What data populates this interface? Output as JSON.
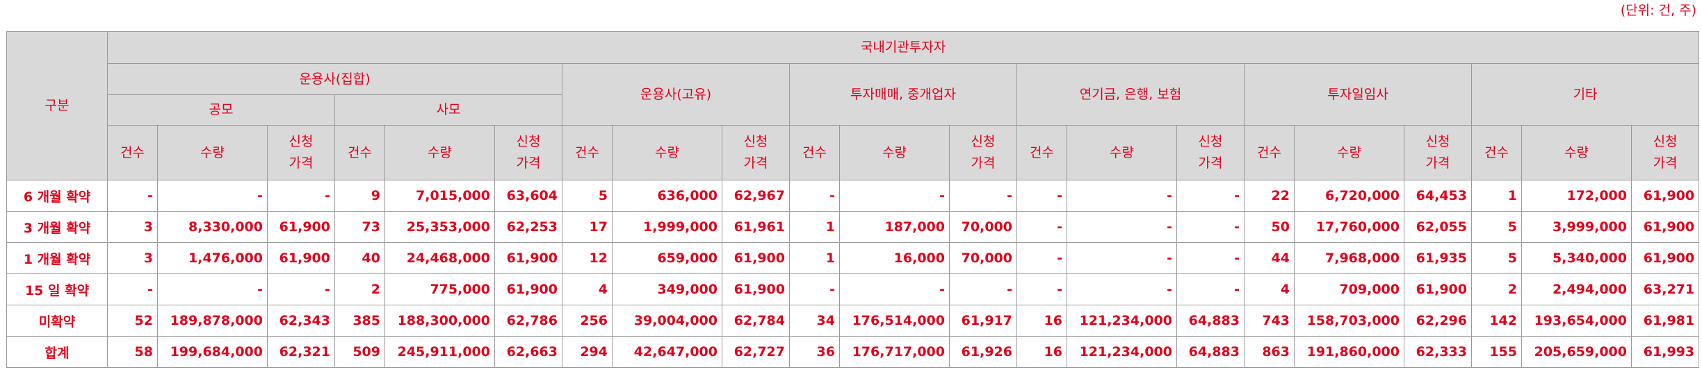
{
  "unit_label": "(단위: 건, 주)",
  "header": {
    "category": "구분",
    "domestic": "국내기관투자자",
    "collective": "운용사(집합)",
    "public": "공모",
    "private": "사모",
    "proprietary": "운용사(고유)",
    "brokerage": "투자매매, 중개업자",
    "pension": "연기금, 은행, 보험",
    "vc": "투자일임사",
    "other": "기타",
    "count": "건수",
    "quantity": "수량",
    "bid_price": "신청\n가격"
  },
  "rows": [
    {
      "label": "6 개월 확약",
      "cells": [
        "-",
        "-",
        "-",
        "9",
        "7,015,000",
        "63,604",
        "5",
        "636,000",
        "62,967",
        "-",
        "-",
        "-",
        "-",
        "-",
        "-",
        "22",
        "6,720,000",
        "64,453",
        "1",
        "172,000",
        "61,900"
      ]
    },
    {
      "label": "3 개월 확약",
      "cells": [
        "3",
        "8,330,000",
        "61,900",
        "73",
        "25,353,000",
        "62,253",
        "17",
        "1,999,000",
        "61,961",
        "1",
        "187,000",
        "70,000",
        "-",
        "-",
        "-",
        "50",
        "17,760,000",
        "62,055",
        "5",
        "3,999,000",
        "61,900"
      ]
    },
    {
      "label": "1 개월 확약",
      "cells": [
        "3",
        "1,476,000",
        "61,900",
        "40",
        "24,468,000",
        "61,900",
        "12",
        "659,000",
        "61,900",
        "1",
        "16,000",
        "70,000",
        "-",
        "-",
        "-",
        "44",
        "7,968,000",
        "61,935",
        "5",
        "5,340,000",
        "61,900"
      ]
    },
    {
      "label": "15 일 확약",
      "cells": [
        "-",
        "-",
        "-",
        "2",
        "775,000",
        "61,900",
        "4",
        "349,000",
        "61,900",
        "-",
        "-",
        "-",
        "-",
        "-",
        "-",
        "4",
        "709,000",
        "61,900",
        "2",
        "2,494,000",
        "63,271"
      ]
    },
    {
      "label": "미확약",
      "cells": [
        "52",
        "189,878,000",
        "62,343",
        "385",
        "188,300,000",
        "62,786",
        "256",
        "39,004,000",
        "62,784",
        "34",
        "176,514,000",
        "61,917",
        "16",
        "121,234,000",
        "64,883",
        "743",
        "158,703,000",
        "62,296",
        "142",
        "193,654,000",
        "61,981"
      ]
    },
    {
      "label": "합계",
      "cells": [
        "58",
        "199,684,000",
        "62,321",
        "509",
        "245,911,000",
        "62,663",
        "294",
        "42,647,000",
        "62,727",
        "36",
        "176,717,000",
        "61,926",
        "16",
        "121,234,000",
        "64,883",
        "863",
        "191,860,000",
        "62,333",
        "155",
        "205,659,000",
        "61,993"
      ]
    }
  ]
}
